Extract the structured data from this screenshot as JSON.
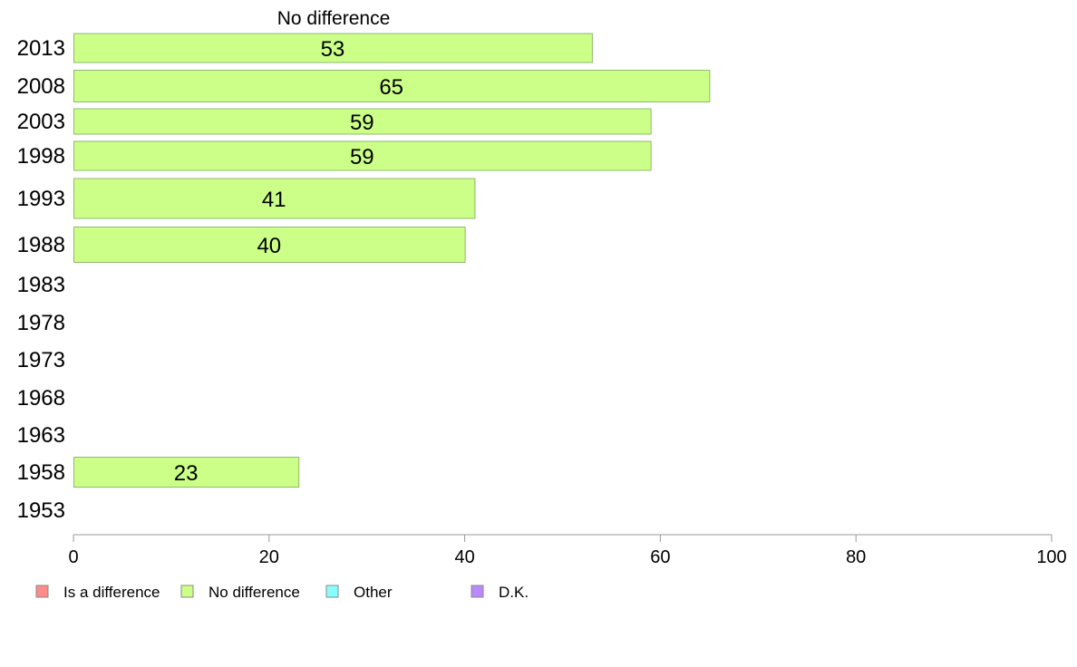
{
  "chart_data": {
    "type": "bar",
    "orientation": "horizontal",
    "series_title": "No difference",
    "categories": [
      "2013",
      "2008",
      "2003",
      "1998",
      "1993",
      "1988",
      "1983",
      "1978",
      "1973",
      "1968",
      "1963",
      "1958",
      "1953"
    ],
    "series": [
      {
        "name": "No difference",
        "values": [
          53,
          65,
          59,
          59,
          41,
          40,
          null,
          null,
          null,
          null,
          null,
          23,
          null
        ]
      }
    ],
    "data_labels": [
      "53",
      "65",
      "59",
      "59",
      "41",
      "40",
      "",
      "",
      "",
      "",
      "",
      "23",
      ""
    ],
    "xlim": [
      0,
      100
    ],
    "xticks": [
      "0",
      "20",
      "40",
      "60",
      "80",
      "100"
    ],
    "grid": false,
    "legend_position": "bottom-left",
    "legend": [
      {
        "label": "Is a difference",
        "color": "#ff8a8a"
      },
      {
        "label": "No difference",
        "color": "#ccff88"
      },
      {
        "label": "Other",
        "color": "#88ffff"
      },
      {
        "label": "D.K.",
        "color": "#bb88ff"
      }
    ],
    "bar_color": "#ccff88",
    "bar_stroke": "#8fb870"
  }
}
